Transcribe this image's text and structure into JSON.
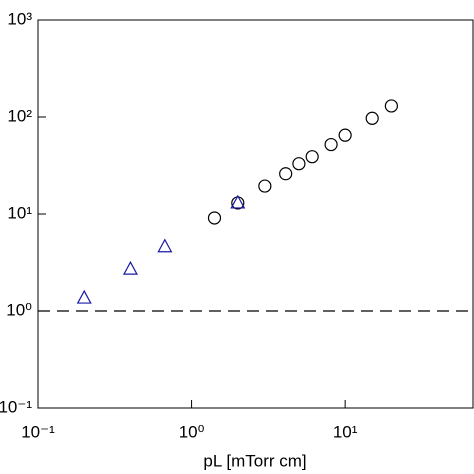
{
  "chart_data": {
    "type": "scatter",
    "x_label": "pL [mTorr cm]",
    "xscale": "log",
    "yscale": "log",
    "xlim": [
      0.1,
      68
    ],
    "ylim": [
      0.1,
      1000
    ],
    "xticks": [
      {
        "value": 0.1,
        "label": "10⁻¹"
      },
      {
        "value": 1,
        "label": "10⁰"
      },
      {
        "value": 10,
        "label": "10¹"
      }
    ],
    "yticks": [
      {
        "value": 0.1,
        "label": "10⁻¹"
      },
      {
        "value": 1,
        "label": "10⁰"
      },
      {
        "value": 10,
        "label": "10¹"
      },
      {
        "value": 100,
        "label": "10²"
      },
      {
        "value": 1000,
        "label": "10³"
      }
    ],
    "reference_line": {
      "y": 1,
      "style": "dashed",
      "color": "#000000"
    },
    "series": [
      {
        "marker": "circle",
        "color": "#000000",
        "x": [
          1.41,
          2.0,
          3.0,
          4.1,
          5.0,
          6.1,
          8.1,
          10,
          15,
          20
        ],
        "values": [
          9.1,
          13,
          19.4,
          26,
          33,
          39,
          52,
          65,
          97,
          130
        ]
      },
      {
        "marker": "triangle",
        "color": "#1a1aa6",
        "x": [
          0.2,
          0.4,
          0.67,
          2.0
        ],
        "values": [
          1.36,
          2.7,
          4.6,
          13
        ]
      }
    ]
  }
}
